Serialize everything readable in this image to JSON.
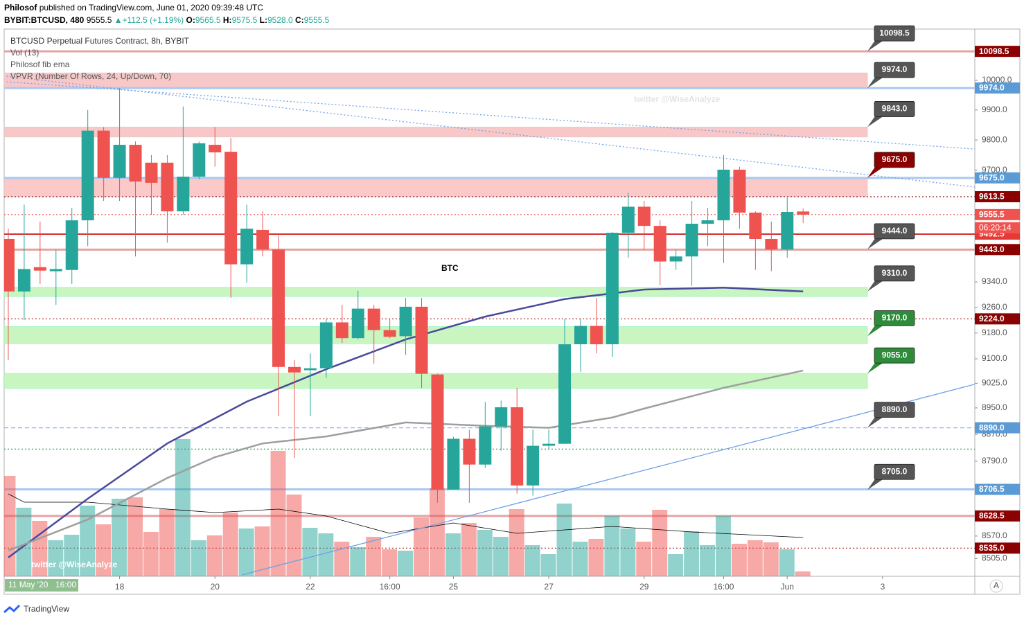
{
  "header": {
    "author": "Philosof",
    "published": "published on TradingView.com, June 01, 2020 09:39:48 UTC",
    "symbol": "BYBIT:BTCUSD, 480",
    "last": "9555.5",
    "change": "+112.5 (+1.19%)",
    "ohlc": [
      {
        "key": "O:",
        "value": "9565.5"
      },
      {
        "key": "H:",
        "value": "9575.5"
      },
      {
        "key": "L:",
        "value": "9528.0"
      },
      {
        "key": "C:",
        "value": "9555.5"
      }
    ]
  },
  "legend": [
    "BTCUSD Perpetual Futures Contract, 8h, BYBIT",
    "Vol (13)",
    "Philosof fib ema",
    "VPVR (Number Of Rows, 24, Up/Down, 70)"
  ],
  "footer": {
    "brand": "TradingView",
    "date_tag": "11 May '20",
    "time_tag": "16:00",
    "scale_button": "A"
  },
  "chart_data": {
    "type": "candlestick",
    "title": "BTC",
    "watermarks": [
      "twitter @WiseAnalyze",
      "twitter @WiseAnalyze"
    ],
    "log_scale": true,
    "grid": false,
    "up_color": "#26a69a",
    "down_color": "#ef5350",
    "xlim": [
      -0.26,
      60.8
    ],
    "ylim": [
      8454,
      10175
    ],
    "xticks": [
      {
        "value": 7,
        "label": "18"
      },
      {
        "value": 13,
        "label": "20"
      },
      {
        "value": 19,
        "label": "22"
      },
      {
        "value": 24,
        "label": "16:00"
      },
      {
        "value": 28,
        "label": "25"
      },
      {
        "value": 34,
        "label": "27"
      },
      {
        "value": 40,
        "label": "29"
      },
      {
        "value": 45,
        "label": "16:00"
      },
      {
        "value": 49,
        "label": "Jun"
      },
      {
        "value": 55,
        "label": "3"
      }
    ],
    "yticks": [
      {
        "value": 10000,
        "label": "10000.0"
      },
      {
        "value": 9900,
        "label": "9900.0"
      },
      {
        "value": 9800,
        "label": "9800.0"
      },
      {
        "value": 9700,
        "label": "9700.0"
      },
      {
        "value": 9340,
        "label": "9340.0"
      },
      {
        "value": 9260,
        "label": "9260.0"
      },
      {
        "value": 9180,
        "label": "9180.0"
      },
      {
        "value": 9100,
        "label": "9100.0"
      },
      {
        "value": 9025,
        "label": "9025.0"
      },
      {
        "value": 8950,
        "label": "8950.0"
      },
      {
        "value": 8870,
        "label": "8870.0"
      },
      {
        "value": 8790,
        "label": "8790.0"
      },
      {
        "value": 8570,
        "label": "8570.0"
      },
      {
        "value": 8505,
        "label": "8505.0"
      }
    ],
    "candles": {
      "open": [
        9477,
        9310,
        9387,
        9374,
        9378,
        9537,
        9831,
        9675,
        9784,
        9725,
        9725,
        9566,
        9679,
        9784,
        9761,
        9396,
        9506,
        9443,
        9075,
        9065,
        9071,
        9213,
        9164,
        9256,
        9189,
        9170,
        9262,
        9052,
        8706,
        8857,
        8780,
        8894,
        8952,
        8718,
        8836,
        8842,
        9145,
        9202,
        9145,
        9497,
        9581,
        9519,
        9405,
        9421,
        9526,
        9537,
        9702,
        9562,
        9477,
        9443,
        9565.5
      ],
      "high": [
        9510,
        9588,
        9533,
        9443,
        9577,
        9900,
        9843,
        9974,
        9795,
        9750,
        9750,
        9912,
        9795,
        9843,
        9807,
        9588,
        9566,
        9488,
        9096,
        9117,
        9224,
        9268,
        9312,
        9268,
        9224,
        9290,
        9290,
        9054,
        8863,
        8884,
        8968,
        8972,
        9011,
        8884,
        8884,
        9224,
        9224,
        9290,
        9499,
        9626,
        9600,
        9537,
        9443,
        9600,
        9577,
        9750,
        9712,
        9566,
        9533,
        9611,
        9575.5
      ],
      "low": [
        9096,
        9220,
        9334,
        9268,
        9334,
        9454,
        9600,
        9600,
        9421,
        9555,
        9465,
        9555,
        9670,
        9712,
        9290,
        9338,
        9421,
        8925,
        8800,
        8925,
        9042,
        9149,
        9160,
        9085,
        9164,
        9112,
        9011,
        8667,
        8706,
        8667,
        8770,
        8821,
        8694,
        8688,
        8826,
        8842,
        9060,
        9117,
        9106,
        9417,
        9443,
        9330,
        9378,
        9328,
        9454,
        9400,
        9510,
        9378,
        9374,
        9417,
        9528
      ],
      "close": [
        9310,
        9381,
        9376,
        9381,
        9537,
        9831,
        9675,
        9784,
        9663,
        9659,
        9566,
        9679,
        9789,
        9759,
        9396,
        9510,
        9443,
        9075,
        9058,
        9071,
        9213,
        9164,
        9256,
        9189,
        9168,
        9262,
        9054,
        8706,
        8857,
        8780,
        8894,
        8952,
        8718,
        8836,
        8842,
        9145,
        9202,
        9145,
        9497,
        9581,
        9519,
        9405,
        9421,
        9526,
        9537,
        9702,
        9562,
        9477,
        9443,
        9564,
        9555.5
      ]
    },
    "volume": [
      145,
      99,
      80,
      52,
      60,
      102,
      75,
      112,
      114,
      64,
      97,
      198,
      52,
      59,
      92,
      69,
      72,
      181,
      118,
      70,
      62,
      50,
      42,
      57,
      39,
      37,
      85,
      127,
      62,
      77,
      67,
      57,
      97,
      45,
      32,
      105,
      50,
      54,
      87,
      69,
      50,
      96,
      32,
      65,
      45,
      87,
      47,
      52,
      49,
      39,
      7
    ],
    "volume_ma": {
      "color": "#000000",
      "x": [
        0,
        1,
        5,
        10,
        13,
        17,
        20,
        24,
        28,
        32,
        38,
        43,
        50
      ],
      "values": [
        119,
        107,
        107,
        97,
        92,
        97,
        87,
        62,
        77,
        62,
        72,
        64,
        56
      ]
    },
    "lines": [
      {
        "color": "#4a4a9c",
        "x": [
          0,
          5,
          10,
          15,
          20,
          25,
          30,
          35,
          40,
          45,
          50
        ],
        "values": [
          8508,
          8679,
          8843,
          8969,
          9068,
          9160,
          9231,
          9286,
          9316,
          9322,
          9310
        ]
      },
      {
        "color": "#9e9e9e",
        "x": [
          0,
          5,
          10,
          13,
          16,
          20,
          25,
          30,
          34,
          38,
          40,
          45,
          50
        ],
        "values": [
          8528,
          8618,
          8740,
          8802,
          8843,
          8864,
          8906,
          8896,
          8890,
          8921,
          8948,
          9011,
          9064
        ]
      }
    ],
    "trendlines": [
      {
        "color": "#6fa0e8",
        "style": "solid",
        "x": [
          14.7,
          60.8
        ],
        "y": [
          8458,
          9022
        ]
      },
      {
        "color": "#6fa0e8",
        "style": "dotted",
        "x": [
          -0.1,
          60.8
        ],
        "y": [
          10014,
          9645
        ]
      },
      {
        "color": "#6fa0e8",
        "style": "dotted",
        "x": [
          -0.1,
          60.8
        ],
        "y": [
          9995,
          9770
        ]
      }
    ],
    "zones": [
      {
        "top": 10025,
        "bottom": 9974,
        "color": "#f8c8c8"
      },
      {
        "top": 9843,
        "bottom": 9810,
        "color": "#f8c8c8"
      },
      {
        "top": 9675,
        "bottom": 9613.5,
        "color": "#fcc9c9"
      },
      {
        "top": 9323,
        "bottom": 9294,
        "color": "#c8f5c0"
      },
      {
        "top": 9200,
        "bottom": 9147,
        "color": "#c8f5c0"
      },
      {
        "top": 9055,
        "bottom": 9009,
        "color": "#c8f5c0"
      }
    ],
    "levels": [
      {
        "value": 10098.5,
        "color": "#e3a3a3",
        "style": "thick"
      },
      {
        "value": 9974,
        "color": "#a9c8f0",
        "style": "thick"
      },
      {
        "value": 9675,
        "color": "#a9c8f0",
        "style": "thick"
      },
      {
        "value": 9613.5,
        "color": "#8b1a1a",
        "style": "dotted"
      },
      {
        "value": 9555.5,
        "color": "#ef5350",
        "style": "dotted"
      },
      {
        "value": 9492.5,
        "color": "#d32f2f",
        "style": "solid"
      },
      {
        "value": 9443,
        "color": "#e3a3a3",
        "style": "thick"
      },
      {
        "value": 9224,
        "color": "#b03030",
        "style": "dotted"
      },
      {
        "value": 8890,
        "color": "#8fb4e8",
        "style": "dashed"
      },
      {
        "value": 8826,
        "color": "#2e9e3e",
        "style": "dotted"
      },
      {
        "value": 8706.5,
        "color": "#a9c8f0",
        "style": "thick"
      },
      {
        "value": 8628.5,
        "color": "#e3a3a3",
        "style": "thick"
      },
      {
        "value": 8535,
        "color": "#b03030",
        "style": "dotted"
      }
    ],
    "callouts": [
      {
        "value": 10098.5,
        "label": "10098.5",
        "color": "#555555"
      },
      {
        "value": 9974,
        "label": "9974.0",
        "color": "#555555"
      },
      {
        "value": 9843,
        "label": "9843.0",
        "color": "#555555"
      },
      {
        "value": 9675,
        "label": "9675.0",
        "color": "#8b0000"
      },
      {
        "value": 9444,
        "label": "9444.0",
        "color": "#555555"
      },
      {
        "value": 9310,
        "label": "9310.0",
        "color": "#555555"
      },
      {
        "value": 9170,
        "label": "9170.0",
        "color": "#2e8b3a"
      },
      {
        "value": 9055,
        "label": "9055.0",
        "color": "#2e8b3a"
      },
      {
        "value": 8890,
        "label": "8890.0",
        "color": "#555555"
      },
      {
        "value": 8705,
        "label": "8705.0",
        "color": "#555555"
      }
    ],
    "price_tags": [
      {
        "value": 10098.5,
        "label": "10098.5",
        "color": "#8b0000"
      },
      {
        "value": 9974,
        "label": "9974.0",
        "color": "#5b9bd5"
      },
      {
        "value": 9675,
        "label": "9675.0",
        "color": "#5b9bd5"
      },
      {
        "value": 9613.5,
        "label": "9613.5",
        "color": "#8b0000"
      },
      {
        "value": 9555.5,
        "label": "9555.5",
        "color": "#ef5350"
      },
      {
        "value": 9492.5,
        "label": "9492.5",
        "color": "#e53935"
      },
      {
        "value": 9443,
        "label": "9443.0",
        "color": "#8b0000"
      },
      {
        "value": 9224,
        "label": "9224.0",
        "color": "#8b0000"
      },
      {
        "value": 8890,
        "label": "8890.0",
        "color": "#5b9bd5"
      },
      {
        "value": 8706.5,
        "label": "8706.5",
        "color": "#5b9bd5"
      },
      {
        "value": 8628.5,
        "label": "8628.5",
        "color": "#8b0000"
      },
      {
        "value": 8535,
        "label": "8535.0",
        "color": "#8b0000"
      }
    ],
    "countdown": {
      "label": "06:20:14",
      "color": "#ef5350"
    }
  }
}
